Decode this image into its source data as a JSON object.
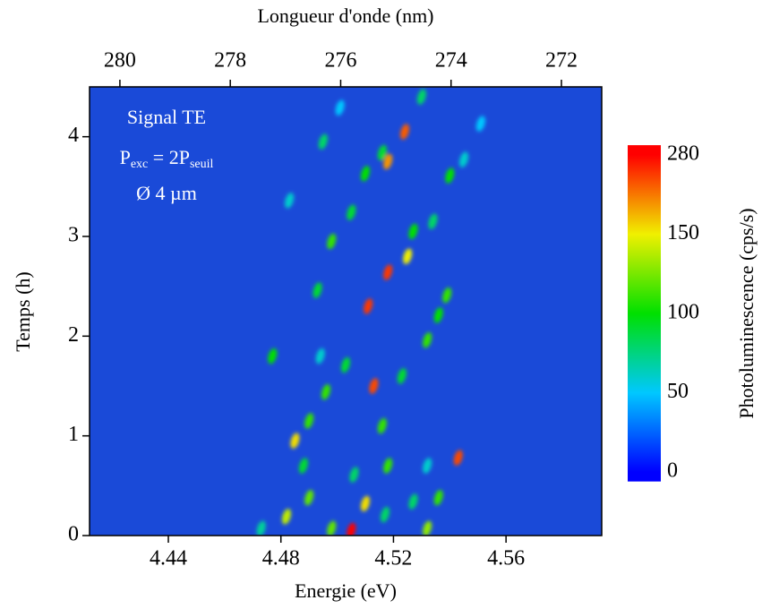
{
  "chart_data": {
    "type": "heatmap",
    "xlabel": "Energie (eV)",
    "x2label": "Longueur d'onde (nm)",
    "ylabel": "Temps (h)",
    "colorbar_label": "Photoluminescence (cps/s)",
    "xlim": [
      4.412,
      4.594
    ],
    "xticks": [
      4.44,
      4.48,
      4.52,
      4.56
    ],
    "x2lim": [
      280.55,
      271.27
    ],
    "x2ticks": [
      280,
      278,
      276,
      274,
      272
    ],
    "ylim": [
      0,
      4.5
    ],
    "yticks": [
      0,
      1,
      2,
      3,
      4
    ],
    "clim": [
      -6,
      296
    ],
    "cticks": [
      0,
      50,
      100,
      150,
      280
    ],
    "ccolors": [
      "#0000ff",
      "#00c8ff",
      "#00e000",
      "#f0f000",
      "#ff0000"
    ],
    "plot_color": "#1a4ad8",
    "annotations": [
      [
        {
          "text": "Signal TE"
        }
      ],
      [
        {
          "text": "P"
        },
        {
          "text": "exc",
          "sub": true
        },
        {
          "text": " = 2P"
        },
        {
          "text": "seuil",
          "sub": true
        }
      ],
      [
        {
          "text": "Ø 4 µm"
        }
      ]
    ],
    "x": [
      4.505,
      4.51,
      4.517,
      4.49,
      4.482,
      4.498,
      4.532,
      4.536,
      4.543,
      4.485,
      4.49,
      4.496,
      4.516,
      4.518,
      4.513,
      4.523,
      4.532,
      4.536,
      4.539,
      4.477,
      4.511,
      4.518,
      4.525,
      4.527,
      4.534,
      4.493,
      4.498,
      4.505,
      4.51,
      4.516,
      4.518,
      4.524,
      4.53,
      4.54,
      4.545,
      4.551,
      4.495,
      4.501,
      4.483,
      4.503,
      4.494,
      4.527,
      4.473,
      4.488,
      4.506,
      4.532
    ],
    "y": [
      0.05,
      0.32,
      0.21,
      0.38,
      0.19,
      0.07,
      0.07,
      0.38,
      0.78,
      0.95,
      1.15,
      1.44,
      1.1,
      0.7,
      1.5,
      1.6,
      1.96,
      2.21,
      2.41,
      1.8,
      2.3,
      2.64,
      2.8,
      3.05,
      3.15,
      2.46,
      2.95,
      3.24,
      3.63,
      3.84,
      3.75,
      4.05,
      4.4,
      3.61,
      3.77,
      4.13,
      3.95,
      4.29,
      3.36,
      1.71,
      1.8,
      0.34,
      0.07,
      0.7,
      0.61,
      0.7
    ],
    "values": [
      280,
      160,
      80,
      120,
      140,
      120,
      130,
      110,
      240,
      160,
      110,
      110,
      110,
      110,
      240,
      90,
      110,
      100,
      110,
      100,
      250,
      250,
      150,
      100,
      80,
      90,
      110,
      90,
      100,
      90,
      200,
      230,
      80,
      100,
      60,
      50,
      80,
      50,
      60,
      90,
      60,
      80,
      70,
      90,
      80,
      60
    ]
  }
}
